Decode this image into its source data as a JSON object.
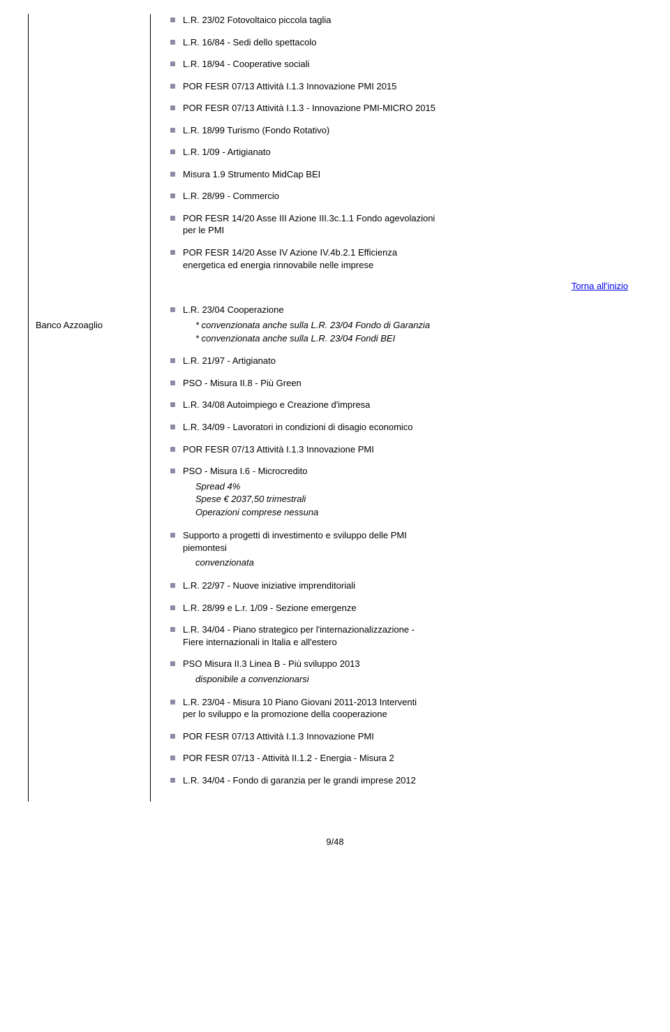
{
  "bank_label": "Banco Azzoaglio",
  "torna_link": "Torna all'inizio",
  "page_number": "9/48",
  "section1": [
    "L.R. 23/02 Fotovoltaico piccola taglia",
    "L.R. 16/84 - Sedi dello spettacolo",
    "L.R. 18/94 - Cooperative sociali",
    "POR FESR 07/13 Attività I.1.3 Innovazione PMI 2015",
    "POR FESR 07/13 Attività I.1.3 - Innovazione PMI-MICRO 2015",
    "L.R. 18/99 Turismo (Fondo Rotativo)",
    "L.R. 1/09 - Artigianato",
    "Misura 1.9 Strumento MidCap BEI",
    "L.R. 28/99 - Commercio"
  ],
  "section1_multi1_a": "POR FESR 14/20 Asse III Azione III.3c.1.1 Fondo agevolazioni",
  "section1_multi1_b": "per le PMI",
  "section1_multi2_a": "POR FESR 14/20 Asse IV Azione IV.4b.2.1 Efficienza",
  "section1_multi2_b": "energetica ed energia rinnovabile nelle imprese",
  "section2_first": "L.R. 23/04 Cooperazione",
  "section2_first_note_a": "* convenzionata anche sulla L.R. 23/04 Fondo di Garanzia",
  "section2_first_note_b": "* convenzionata anche sulla L.R. 23/04 Fondi BEI",
  "section2_mid": [
    "L.R. 21/97 - Artigianato",
    "PSO - Misura II.8 - Più Green",
    "L.R. 34/08 Autoimpiego e Creazione d'impresa",
    "L.R. 34/09 - Lavoratori in condizioni di disagio economico",
    "POR FESR 07/13 Attività I.1.3 Innovazione PMI"
  ],
  "section2_micro": "PSO - Misura I.6 - Microcredito",
  "section2_micro_note_a": "Spread 4%",
  "section2_micro_note_b": "Spese € 2037,50 trimestrali",
  "section2_micro_note_c": "Operazioni comprese nessuna",
  "section2_supporto_a": "Supporto a progetti di investimento e sviluppo delle PMI",
  "section2_supporto_b": "piemontesi",
  "section2_supporto_note": "convenzionata",
  "section2_after": [
    "L.R. 22/97 - Nuove iniziative imprenditoriali",
    "L.R. 28/99 e L.r. 1/09 - Sezione emergenze"
  ],
  "section2_piano_a": "L.R. 34/04 - Piano strategico per l'internazionalizzazione -",
  "section2_piano_b": "Fiere internazionali in Italia e all'estero",
  "section2_pso": "PSO Misura II.3 Linea B - Più sviluppo 2013",
  "section2_pso_note": "disponibile a convenzionarsi",
  "section2_misura10_a": "L.R. 23/04 - Misura 10 Piano Giovani 2011-2013 Interventi",
  "section2_misura10_b": "per lo sviluppo e la promozione della cooperazione",
  "section2_tail": [
    "POR FESR 07/13 Attività I.1.3 Innovazione PMI",
    "POR FESR 07/13 - Attività II.1.2 - Energia - Misura 2",
    "L.R.  34/04 - Fondo di garanzia per le grandi imprese 2012"
  ]
}
